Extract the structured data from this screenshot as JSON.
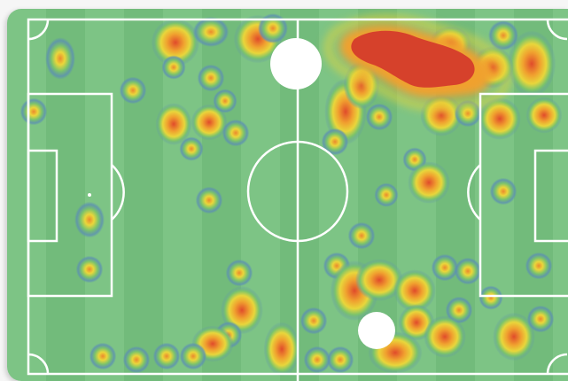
{
  "view": {
    "type": "football-pitch-heatmap",
    "pitch_colors": {
      "stripe_light": "#7dc485",
      "stripe_dark": "#72bb7b",
      "lines": "#ffffff",
      "background": "#f6f6f6"
    },
    "heat_colors": [
      "#5b8fb0",
      "#7cc06a",
      "#f2d23a",
      "#ef8b2c",
      "#d9442b"
    ],
    "markers": [
      {
        "name": "player-marker-top",
        "kind": "white-dot"
      },
      {
        "name": "player-marker-bottom",
        "kind": "white-dot"
      }
    ]
  }
}
